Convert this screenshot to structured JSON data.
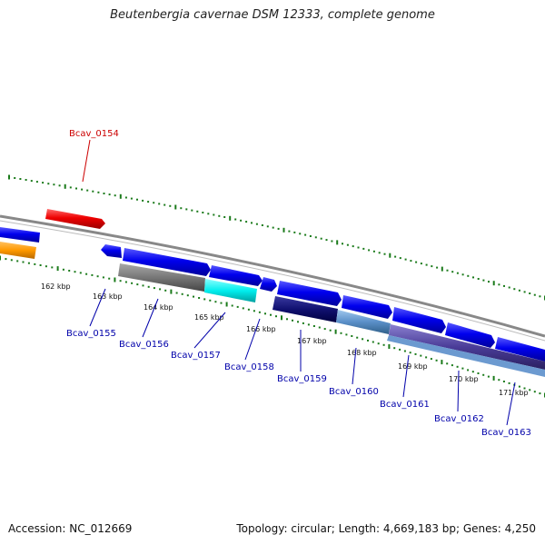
{
  "title": "Beutenbergia cavernae DSM 12333, complete genome",
  "footer": {
    "accession": "Accession: NC_012669",
    "topology": "Topology: circular; Length: 4,669,183 bp; Genes: 4,250"
  },
  "colors": {
    "label_top": "#cc0000",
    "label_bottom": "#0000aa",
    "tick": "#1a7a1a",
    "backbone": "#808080"
  },
  "tick_labels": [
    "162 kbp",
    "163 kbp",
    "164 kbp",
    "165 kbp",
    "166 kbp",
    "167 kbp",
    "168 kbp",
    "169 kbp",
    "170 kbp",
    "171 kbp"
  ],
  "genes": [
    {
      "name": "Bcav_0154",
      "strand": "top"
    },
    {
      "name": "Bcav_0155",
      "strand": "bottom"
    },
    {
      "name": "Bcav_0156",
      "strand": "bottom"
    },
    {
      "name": "Bcav_0157",
      "strand": "bottom"
    },
    {
      "name": "Bcav_0158",
      "strand": "bottom"
    },
    {
      "name": "Bcav_0159",
      "strand": "bottom"
    },
    {
      "name": "Bcav_0160",
      "strand": "bottom"
    },
    {
      "name": "Bcav_0161",
      "strand": "bottom"
    },
    {
      "name": "Bcav_0162",
      "strand": "bottom"
    },
    {
      "name": "Bcav_0163",
      "strand": "bottom"
    }
  ]
}
